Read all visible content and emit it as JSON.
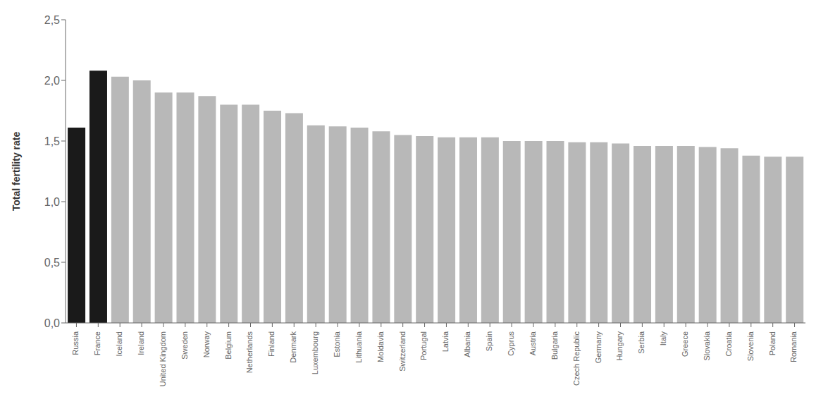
{
  "chart_data": {
    "type": "bar",
    "ylabel": "Total fertility rate",
    "categories": [
      "Russia",
      "France",
      "Iceland",
      "Ireland",
      "United Kingdom",
      "Sweden",
      "Norway",
      "Belgium",
      "Netherlands",
      "Finland",
      "Denmark",
      "Luxembourg",
      "Estonia",
      "Lithuania",
      "Moldavia",
      "Switzerland",
      "Portugal",
      "Latvia",
      "Albania",
      "Spain",
      "Cyprus",
      "Austria",
      "Bulgaria",
      "Czech Republic",
      "Germany",
      "Hungary",
      "Serbia",
      "Italy",
      "Greece",
      "Slovakia",
      "Croatia",
      "Slovenia",
      "Poland",
      "Romania"
    ],
    "values": [
      1.61,
      2.08,
      2.03,
      2.0,
      1.9,
      1.9,
      1.87,
      1.8,
      1.8,
      1.75,
      1.73,
      1.63,
      1.62,
      1.61,
      1.58,
      1.55,
      1.54,
      1.53,
      1.53,
      1.53,
      1.5,
      1.5,
      1.5,
      1.49,
      1.49,
      1.48,
      1.46,
      1.46,
      1.46,
      1.45,
      1.44,
      1.38,
      1.37,
      1.37
    ],
    "colors": [
      "#1a1a1a",
      "#1a1a1a",
      "#b8b8b8",
      "#b8b8b8",
      "#b8b8b8",
      "#b8b8b8",
      "#b8b8b8",
      "#b8b8b8",
      "#b8b8b8",
      "#b8b8b8",
      "#b8b8b8",
      "#b8b8b8",
      "#b8b8b8",
      "#b8b8b8",
      "#b8b8b8",
      "#b8b8b8",
      "#b8b8b8",
      "#b8b8b8",
      "#b8b8b8",
      "#b8b8b8",
      "#b8b8b8",
      "#b8b8b8",
      "#b8b8b8",
      "#b8b8b8",
      "#b8b8b8",
      "#b8b8b8",
      "#b8b8b8",
      "#b8b8b8",
      "#b8b8b8",
      "#b8b8b8",
      "#b8b8b8",
      "#b8b8b8",
      "#b8b8b8",
      "#b8b8b8"
    ],
    "ylim": [
      0,
      2.5
    ],
    "yticks": [
      {
        "value": 0.0,
        "label": "0,0"
      },
      {
        "value": 0.5,
        "label": "0,5"
      },
      {
        "value": 1.0,
        "label": "1,0"
      },
      {
        "value": 1.5,
        "label": "1,5"
      },
      {
        "value": 2.0,
        "label": "2,0"
      },
      {
        "value": 2.5,
        "label": "2,5"
      }
    ],
    "grid": false
  }
}
